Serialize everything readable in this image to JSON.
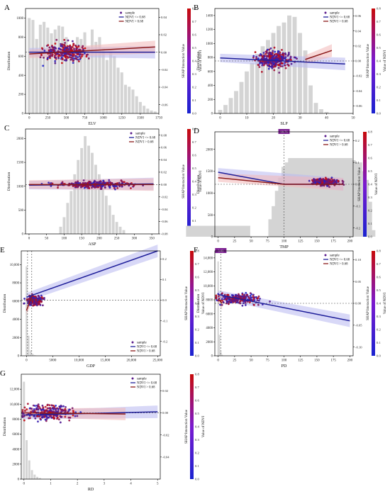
{
  "palette": {
    "bar": "#d4d4d4",
    "band": "#b8b8f0",
    "band_red": "#f2b8b8",
    "axis": "#000000",
    "dash": "#444444",
    "tag": "#7a1f8f",
    "sample": "#5a1a8c",
    "line_low": "#1f1f9a",
    "line_high": "#8b1a1a",
    "cbar_bottom": "#1a22d0",
    "cbar_top": "#c80a0a"
  },
  "common": {
    "ylabel": "Distribution",
    "shap_label": "SHAP Interaction Value",
    "ndvi_label": "Value of NDVI",
    "legend": [
      "sample",
      "NDVI <= 0.68",
      "NDVI > 0.68"
    ],
    "cbar_ticks": [
      "0.0",
      "0.1",
      "0.2",
      "0.3",
      "0.4",
      "0.5",
      "0.6",
      "0.7",
      "0.8"
    ]
  },
  "chart_data": [
    {
      "panel": "A",
      "type": "scatter",
      "xlabel": "ELV",
      "xlim": [
        -50,
        1750
      ],
      "xticks": [
        "0",
        "250",
        "500",
        "750",
        "1000",
        "1250",
        "1500",
        "1750"
      ],
      "xtick_values": [
        0,
        250,
        500,
        750,
        1000,
        1250,
        1500,
        1750
      ],
      "dist_ticks": [
        "0",
        "200",
        "400",
        "600",
        "800",
        "1000"
      ],
      "dist_tick_values": [
        0,
        200,
        400,
        600,
        800,
        1000
      ],
      "dist_lim": [
        0,
        1100
      ],
      "shap_ticks": [
        "-0.06",
        "-0.04",
        "-0.02",
        "0.00",
        "0.02",
        "0.04"
      ],
      "shap_tick_values": [
        -0.06,
        -0.04,
        -0.02,
        0.0,
        0.02,
        0.04
      ],
      "shap_lim": [
        -0.07,
        0.05
      ],
      "hist": {
        "x": [
          0,
          50,
          100,
          150,
          200,
          250,
          300,
          350,
          400,
          450,
          500,
          550,
          600,
          650,
          700,
          750,
          800,
          850,
          900,
          950,
          1000,
          1050,
          1100,
          1150,
          1200,
          1250,
          1300,
          1350,
          1400,
          1450,
          1500,
          1550,
          1600,
          1650,
          1700
        ],
        "values": [
          1000,
          980,
          780,
          930,
          960,
          900,
          840,
          880,
          920,
          910,
          800,
          720,
          650,
          800,
          780,
          850,
          700,
          880,
          750,
          800,
          680,
          560,
          640,
          600,
          480,
          430,
          300,
          280,
          250,
          180,
          120,
          80,
          50,
          30,
          20
        ]
      },
      "cloud": {
        "seed": 11,
        "x_center": 500,
        "x_spread": 520,
        "y_center": 0.0,
        "y_spread": 0.018,
        "n": 260
      },
      "zero_line": 0.0,
      "fit_low": {
        "x": [
          0,
          1700
        ],
        "y": [
          0.0,
          0.0
        ]
      },
      "fit_high": {
        "x": [
          0,
          1700
        ],
        "y": [
          -0.002,
          0.006
        ]
      },
      "legend_position": "top-left"
    },
    {
      "panel": "B",
      "type": "scatter",
      "xlabel": "SLP",
      "xlim": [
        -2,
        50
      ],
      "xticks": [
        "0",
        "10",
        "20",
        "30",
        "40",
        "50"
      ],
      "xtick_values": [
        0,
        10,
        20,
        30,
        40,
        50
      ],
      "dist_ticks": [
        "0",
        "200",
        "400",
        "600",
        "800",
        "1000",
        "1200",
        "1400"
      ],
      "dist_tick_values": [
        0,
        200,
        400,
        600,
        800,
        1000,
        1200,
        1400
      ],
      "dist_lim": [
        0,
        1500
      ],
      "shap_ticks": [
        "-0.06",
        "-0.04",
        "-0.02",
        "0.00",
        "0.02",
        "0.04",
        "0.06"
      ],
      "shap_tick_values": [
        -0.06,
        -0.04,
        -0.02,
        0.0,
        0.02,
        0.04,
        0.06
      ],
      "shap_lim": [
        -0.07,
        0.07
      ],
      "hist": {
        "x": [
          0,
          2,
          4,
          6,
          8,
          10,
          12,
          14,
          16,
          18,
          20,
          22,
          24,
          26,
          28,
          30,
          32,
          34,
          36,
          38,
          40
        ],
        "values": [
          50,
          120,
          220,
          320,
          450,
          600,
          720,
          850,
          960,
          1050,
          1150,
          1250,
          1300,
          1400,
          1380,
          1150,
          900,
          400,
          150,
          60,
          20
        ]
      },
      "cloud": {
        "seed": 23,
        "x_center": 20,
        "x_spread": 11,
        "y_center": 0.002,
        "y_spread": 0.02,
        "n": 300
      },
      "zero_line": 0.0,
      "fit_low": {
        "x": [
          0,
          47
        ],
        "y": [
          0.004,
          -0.004
        ]
      },
      "fit_high": {
        "x": [
          32,
          42
        ],
        "y": [
          0.002,
          0.014
        ]
      },
      "legend_position": "top-right"
    },
    {
      "panel": "C",
      "type": "scatter",
      "xlabel": "ASP",
      "xlim": [
        -10,
        370
      ],
      "xticks": [
        "0",
        "50",
        "100",
        "150",
        "200",
        "250",
        "300",
        "350"
      ],
      "xtick_values": [
        0,
        50,
        100,
        150,
        200,
        250,
        300,
        350
      ],
      "dist_ticks": [
        "0",
        "500",
        "1000",
        "1500",
        "2000"
      ],
      "dist_tick_values": [
        0,
        500,
        1000,
        1500,
        2000
      ],
      "dist_lim": [
        0,
        2200
      ],
      "shap_ticks": [
        "-0.08",
        "-0.06",
        "-0.04",
        "-0.02",
        "0.00",
        "0.02",
        "0.04",
        "0.06",
        "0.08"
      ],
      "shap_tick_values": [
        -0.08,
        -0.06,
        -0.04,
        -0.02,
        0.0,
        0.02,
        0.04,
        0.06,
        0.08
      ],
      "shap_lim": [
        -0.08,
        0.09
      ],
      "hist": {
        "x": [
          90,
          100,
          110,
          120,
          130,
          140,
          150,
          160,
          170,
          180,
          190,
          200,
          210,
          220,
          230,
          240,
          250,
          260,
          270
        ],
        "values": [
          150,
          350,
          650,
          900,
          1250,
          1550,
          1800,
          2050,
          1850,
          1700,
          1450,
          1250,
          1000,
          800,
          600,
          400,
          250,
          150,
          80
        ]
      },
      "cloud": {
        "seed": 37,
        "x_center": 180,
        "x_spread": 170,
        "y_center": 0.0,
        "y_spread": 0.01,
        "n": 300
      },
      "zero_line": 0.0,
      "fit_low": {
        "x": [
          0,
          355
        ],
        "y": [
          -0.001,
          0.001
        ]
      },
      "fit_high": {
        "x": [
          0,
          355
        ],
        "y": [
          0.0,
          0.0
        ]
      },
      "legend_position": "top-right"
    },
    {
      "panel": "D",
      "type": "scatter",
      "xlabel": "TMP",
      "xlim": [
        -5,
        205
      ],
      "xticks": [
        "0",
        "25",
        "50",
        "75",
        "100",
        "125",
        "150",
        "175",
        "200"
      ],
      "xtick_values": [
        0,
        25,
        50,
        75,
        100,
        125,
        150,
        175,
        200
      ],
      "dist_ticks": [
        "0",
        "500",
        "1000",
        "1500",
        "2000"
      ],
      "dist_tick_values": [
        0,
        500,
        1000,
        1500,
        2000
      ],
      "dist_lim": [
        0,
        2400
      ],
      "shap_ticks": [
        "-0.2",
        "-0.1",
        "0.0",
        "0.1",
        "0.2"
      ],
      "shap_tick_values": [
        -0.2,
        -0.1,
        0.0,
        0.1,
        0.2
      ],
      "shap_lim": [
        -0.24,
        0.24
      ],
      "hist": {
        "x": [
          0,
          125,
          130,
          135,
          140,
          145,
          150,
          155,
          160,
          165,
          170,
          175,
          180,
          185,
          190
        ],
        "values": [
          250,
          400,
          700,
          1050,
          1350,
          1600,
          1700,
          1800,
          1750,
          1650,
          1700,
          1500,
          1300,
          800,
          150
        ]
      },
      "cloud": {
        "seed": 41,
        "x_center": 162,
        "x_spread": 35,
        "y_center": 0.01,
        "y_spread": 0.025,
        "n": 240
      },
      "zero_line": 0.0,
      "vline": 100,
      "vline_tag": "98.76",
      "fit_low": {
        "x": [
          0,
          100,
          190
        ],
        "y": [
          0.055,
          0.0,
          0.0
        ]
      },
      "fit_high": {
        "x": [
          0,
          100,
          190
        ],
        "y": [
          0.03,
          0.0,
          0.0
        ]
      },
      "legend_position": "top-right"
    },
    {
      "panel": "E",
      "type": "scatter",
      "xlabel": "GDP",
      "xlim": [
        -1000,
        25500
      ],
      "xticks": [
        "0",
        "5000",
        "10,000",
        "15,000",
        "20,000",
        "25,000"
      ],
      "xtick_values": [
        0,
        5000,
        10000,
        15000,
        20000,
        25000
      ],
      "dist_ticks": [
        "0",
        "2000",
        "4000",
        "6000",
        "8000",
        "10,000"
      ],
      "dist_tick_values": [
        0,
        2000,
        4000,
        6000,
        8000,
        10000
      ],
      "dist_lim": [
        0,
        11500
      ],
      "shap_ticks": [
        "-0.2",
        "-0.1",
        "0.0",
        "0.1",
        "0.2"
      ],
      "shap_tick_values": [
        -0.2,
        -0.1,
        0.0,
        0.1,
        0.2
      ],
      "shap_lim": [
        -0.27,
        0.24
      ],
      "hist": {
        "x": [
          0,
          400,
          800,
          1200,
          1600
        ],
        "values": [
          9800,
          2200,
          600,
          200,
          60
        ]
      },
      "cloud": {
        "seed": 53,
        "x_center": 1500,
        "x_spread": 2500,
        "y_center": 0.0,
        "y_spread": 0.04,
        "n": 220
      },
      "zero_line": 0.0,
      "vline": 200,
      "vline2": 1000,
      "fit_low": {
        "x": [
          0,
          25000
        ],
        "y": [
          0.015,
          0.24
        ]
      },
      "fit_high": {
        "x": [
          0,
          1000
        ],
        "y": [
          -0.05,
          0.02
        ]
      },
      "legend_position": "bottom-right"
    },
    {
      "panel": "F",
      "type": "scatter",
      "xlabel": "PD",
      "xlim": [
        -5,
        205
      ],
      "xticks": [
        "0",
        "25",
        "50",
        "75",
        "100",
        "125",
        "150",
        "175",
        "200"
      ],
      "xtick_values": [
        0,
        25,
        50,
        75,
        100,
        125,
        150,
        175,
        200
      ],
      "dist_ticks": [
        "0",
        "2000",
        "4000",
        "6000",
        "8000",
        "10,000",
        "12,000",
        "14,000"
      ],
      "dist_tick_values": [
        0,
        2000,
        4000,
        6000,
        8000,
        10000,
        12000,
        14000
      ],
      "dist_lim": [
        0,
        15000
      ],
      "shap_ticks": [
        "-0.10",
        "-0.05",
        "0.00",
        "0.05",
        "0.10"
      ],
      "shap_tick_values": [
        -0.1,
        -0.05,
        0.0,
        0.05,
        0.1
      ],
      "shap_lim": [
        -0.12,
        0.12
      ],
      "hist": {
        "x": [
          0,
          2,
          4,
          6
        ],
        "values": [
          13500,
          3000,
          600,
          150
        ]
      },
      "cloud": {
        "seed": 67,
        "x_center": 30,
        "x_spread": 60,
        "y_center": 0.01,
        "y_spread": 0.02,
        "n": 220
      },
      "zero_line": 0.0,
      "vline": 4,
      "vline_tag": "3.83",
      "fit_low": {
        "x": [
          0,
          200
        ],
        "y": [
          0.02,
          -0.04
        ]
      },
      "fit_high": {
        "x": [
          0,
          6
        ],
        "y": [
          0.01,
          0.0
        ]
      },
      "legend_position": "top-right"
    },
    {
      "panel": "G",
      "type": "scatter",
      "xlabel": "RD",
      "xlim": [
        -0.1,
        5.1
      ],
      "xticks": [
        "0",
        "1",
        "2",
        "3",
        "4",
        "5"
      ],
      "xtick_values": [
        0,
        1,
        2,
        3,
        4,
        5
      ],
      "dist_ticks": [
        "0",
        "2000",
        "4000",
        "6000",
        "8000",
        "10,000",
        "12,000"
      ],
      "dist_tick_values": [
        0,
        2000,
        4000,
        6000,
        8000,
        10000,
        12000
      ],
      "dist_lim": [
        0,
        14000
      ],
      "shap_ticks": [
        "-0.04",
        "-0.02",
        "0.00",
        "0.02"
      ],
      "shap_tick_values": [
        -0.04,
        -0.02,
        0.0,
        0.02
      ],
      "shap_lim": [
        -0.06,
        0.035
      ],
      "hist": {
        "x": [
          0,
          0.1,
          0.2,
          0.3,
          0.4,
          0.5,
          0.6
        ],
        "values": [
          13000,
          5200,
          2500,
          1200,
          600,
          300,
          150
        ]
      },
      "cloud": {
        "seed": 79,
        "x_center": 0.9,
        "x_spread": 1.6,
        "y_center": 0.0,
        "y_spread": 0.012,
        "n": 260
      },
      "zero_line": 0.0,
      "fit_low": {
        "x": [
          0,
          5
        ],
        "y": [
          -0.002,
          0.001
        ]
      },
      "fit_high": {
        "x": [
          0,
          3.8
        ],
        "y": [
          0.0,
          -0.001
        ]
      },
      "legend_position": "top-right"
    }
  ]
}
